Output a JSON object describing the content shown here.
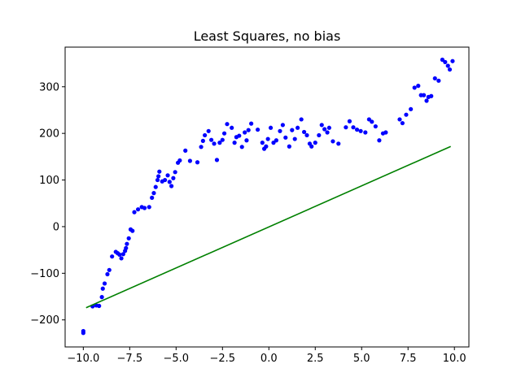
{
  "chart_data": {
    "type": "scatter",
    "title": "Least Squares, no bias",
    "xlabel": "",
    "ylabel": "",
    "xlim": [
      -10.98,
      10.78
    ],
    "ylim": [
      -258,
      385
    ],
    "grid": false,
    "x_ticks": [
      -10.0,
      -7.5,
      -5.0,
      -2.5,
      0.0,
      2.5,
      5.0,
      7.5,
      10.0
    ],
    "x_tick_labels": [
      "−10.0",
      "−7.5",
      "−5.0",
      "−2.5",
      "0.0",
      "2.5",
      "5.0",
      "7.5",
      "10.0"
    ],
    "y_ticks": [
      -200,
      -100,
      0,
      100,
      200,
      300
    ],
    "y_tick_labels": [
      "−200",
      "−100",
      "0",
      "100",
      "200",
      "300"
    ],
    "colors": {
      "points": "#0000ff",
      "fit_line": "#008000",
      "axes": "#000000"
    },
    "series": [
      {
        "kind": "scatter",
        "points": [
          [
            -10.0,
            -228
          ],
          [
            -10.0,
            -224
          ],
          [
            -9.5,
            -171
          ],
          [
            -9.3,
            -169
          ],
          [
            -9.15,
            -170
          ],
          [
            -9.0,
            -151
          ],
          [
            -8.95,
            -133
          ],
          [
            -8.85,
            -122
          ],
          [
            -8.7,
            -102
          ],
          [
            -8.6,
            -93
          ],
          [
            -8.45,
            -64
          ],
          [
            -8.25,
            -54
          ],
          [
            -8.15,
            -57
          ],
          [
            -8.05,
            -60
          ],
          [
            -7.95,
            -68
          ],
          [
            -7.85,
            -59
          ],
          [
            -7.75,
            -52
          ],
          [
            -7.7,
            -46
          ],
          [
            -7.65,
            -37
          ],
          [
            -7.55,
            -25
          ],
          [
            -7.45,
            -6
          ],
          [
            -7.35,
            -9
          ],
          [
            -7.25,
            31
          ],
          [
            -7.05,
            37
          ],
          [
            -6.85,
            42
          ],
          [
            -6.7,
            40
          ],
          [
            -6.45,
            42
          ],
          [
            -6.3,
            62
          ],
          [
            -6.2,
            72
          ],
          [
            -6.1,
            85
          ],
          [
            -6.0,
            100
          ],
          [
            -5.95,
            108
          ],
          [
            -5.9,
            118
          ],
          [
            -5.75,
            97
          ],
          [
            -5.6,
            100
          ],
          [
            -5.45,
            110
          ],
          [
            -5.35,
            96
          ],
          [
            -5.25,
            87
          ],
          [
            -5.15,
            104
          ],
          [
            -5.05,
            117
          ],
          [
            -4.9,
            137
          ],
          [
            -4.8,
            142
          ],
          [
            -4.5,
            163
          ],
          [
            -4.25,
            141
          ],
          [
            -3.85,
            138
          ],
          [
            -3.65,
            171
          ],
          [
            -3.55,
            184
          ],
          [
            -3.45,
            196
          ],
          [
            -3.25,
            205
          ],
          [
            -3.1,
            186
          ],
          [
            -2.95,
            178
          ],
          [
            -2.8,
            143
          ],
          [
            -2.65,
            180
          ],
          [
            -2.5,
            186
          ],
          [
            -2.4,
            200
          ],
          [
            -2.25,
            220
          ],
          [
            -2.0,
            212
          ],
          [
            -1.85,
            180
          ],
          [
            -1.75,
            192
          ],
          [
            -1.6,
            195
          ],
          [
            -1.45,
            171
          ],
          [
            -1.3,
            202
          ],
          [
            -1.2,
            185
          ],
          [
            -1.1,
            207
          ],
          [
            -0.95,
            221
          ],
          [
            -0.6,
            208
          ],
          [
            -0.35,
            180
          ],
          [
            -0.25,
            167
          ],
          [
            -0.15,
            172
          ],
          [
            -0.05,
            188
          ],
          [
            0.1,
            212
          ],
          [
            0.25,
            180
          ],
          [
            0.4,
            185
          ],
          [
            0.6,
            205
          ],
          [
            0.75,
            218
          ],
          [
            0.9,
            191
          ],
          [
            1.1,
            172
          ],
          [
            1.25,
            207
          ],
          [
            1.4,
            188
          ],
          [
            1.55,
            212
          ],
          [
            1.75,
            230
          ],
          [
            1.9,
            203
          ],
          [
            2.05,
            196
          ],
          [
            2.2,
            178
          ],
          [
            2.3,
            172
          ],
          [
            2.5,
            180
          ],
          [
            2.7,
            196
          ],
          [
            2.85,
            218
          ],
          [
            3.0,
            209
          ],
          [
            3.15,
            202
          ],
          [
            3.25,
            212
          ],
          [
            3.45,
            183
          ],
          [
            3.75,
            178
          ],
          [
            4.15,
            213
          ],
          [
            4.35,
            226
          ],
          [
            4.55,
            213
          ],
          [
            4.75,
            208
          ],
          [
            4.95,
            205
          ],
          [
            5.2,
            202
          ],
          [
            5.4,
            230
          ],
          [
            5.55,
            225
          ],
          [
            5.75,
            215
          ],
          [
            5.95,
            185
          ],
          [
            6.15,
            200
          ],
          [
            6.3,
            202
          ],
          [
            7.05,
            230
          ],
          [
            7.2,
            222
          ],
          [
            7.4,
            240
          ],
          [
            7.65,
            252
          ],
          [
            7.85,
            298
          ],
          [
            8.05,
            302
          ],
          [
            8.2,
            282
          ],
          [
            8.35,
            282
          ],
          [
            8.5,
            270
          ],
          [
            8.6,
            278
          ],
          [
            8.75,
            280
          ],
          [
            8.95,
            318
          ],
          [
            9.15,
            313
          ],
          [
            9.35,
            358
          ],
          [
            9.5,
            353
          ],
          [
            9.65,
            345
          ],
          [
            9.75,
            337
          ],
          [
            9.9,
            355
          ]
        ]
      },
      {
        "kind": "line",
        "points": [
          [
            -9.85,
            -174
          ],
          [
            9.8,
            172
          ]
        ]
      }
    ]
  }
}
